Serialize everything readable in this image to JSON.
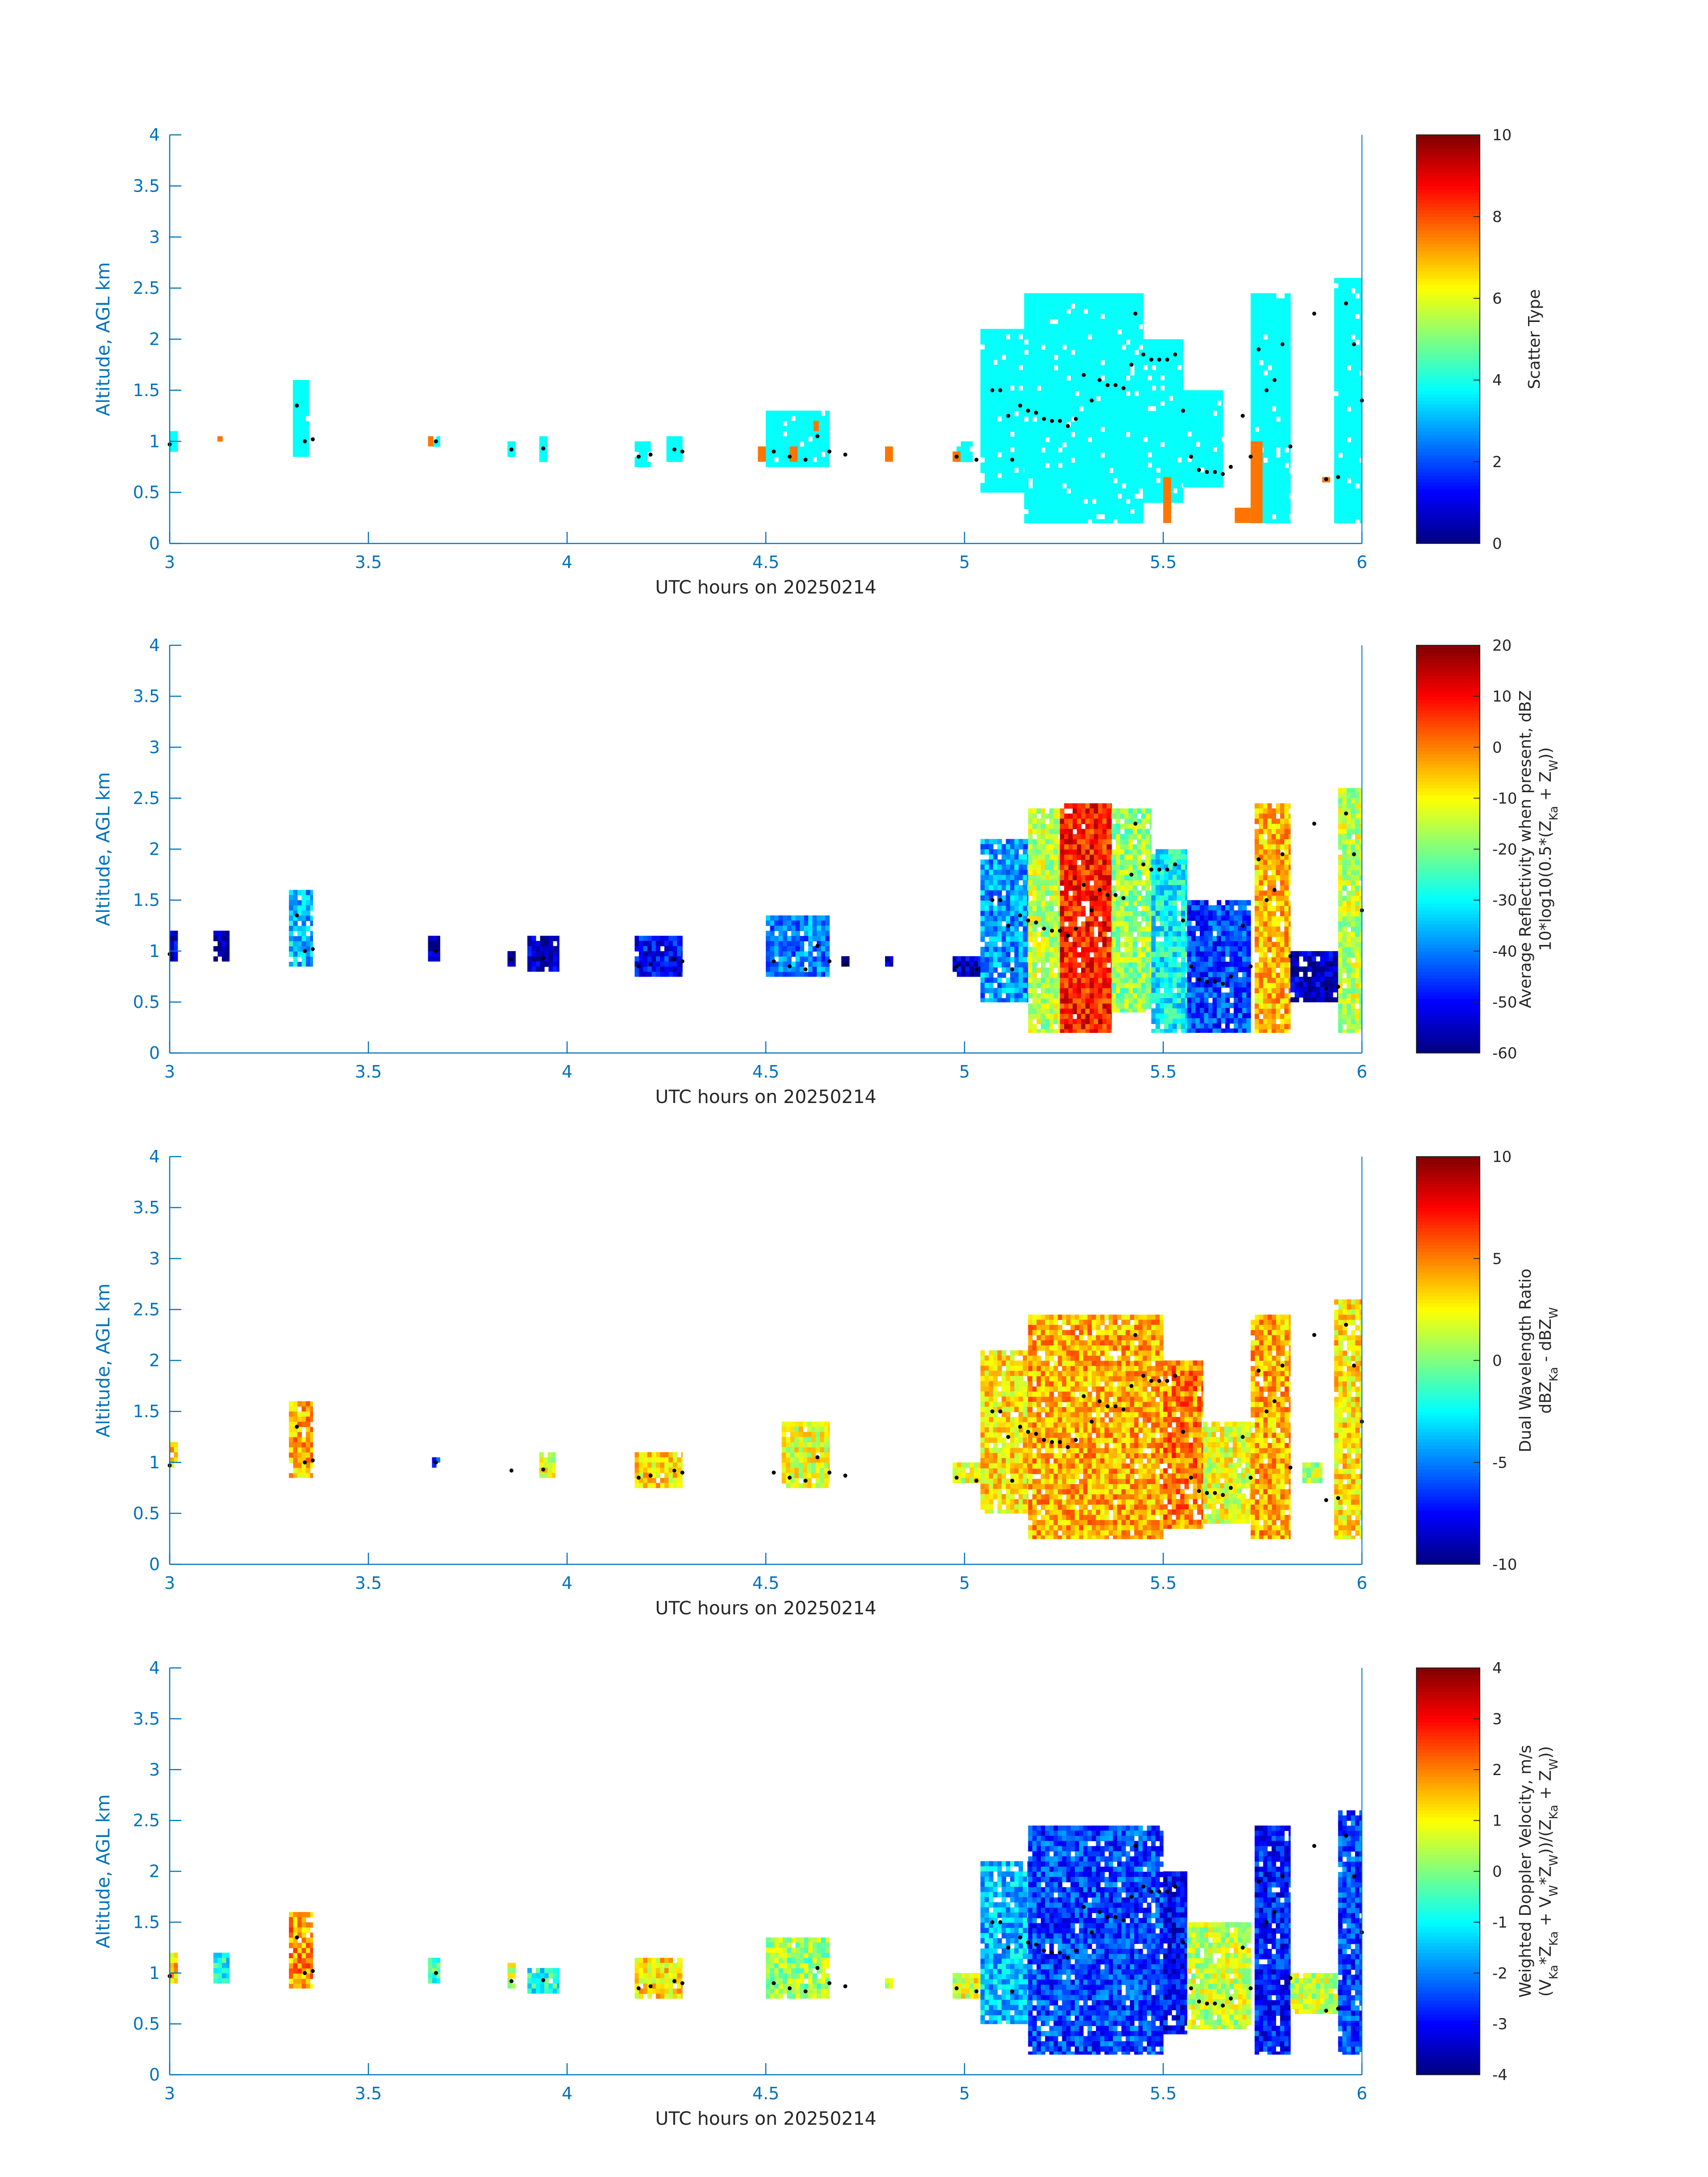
{
  "figure": {
    "background": "#ffffff",
    "axis_color": "#0072bd",
    "colormap": "jet"
  },
  "chart_data": [
    {
      "type": "heatmap",
      "xlabel": "UTC hours on 20250214",
      "ylabel": "Altitude, AGL km",
      "xlim": [
        3,
        6
      ],
      "ylim": [
        0,
        4
      ],
      "xticks": [
        "3",
        "3.5",
        "4",
        "4.5",
        "5",
        "5.5",
        "6"
      ],
      "yticks": [
        "0",
        "0.5",
        "1",
        "1.5",
        "2",
        "2.5",
        "3",
        "3.5",
        "4"
      ],
      "colorbar": {
        "range": [
          0,
          10
        ],
        "ticks": [
          "0",
          "2",
          "4",
          "6",
          "8",
          "10"
        ],
        "label_lines": [
          "Scatter Type"
        ]
      },
      "dominant_value": 3.8,
      "secondary_value": 7.6,
      "regions": [
        {
          "x": [
            3.0,
            3.02
          ],
          "y": [
            0.9,
            1.1
          ]
        },
        {
          "x": [
            3.31,
            3.35
          ],
          "y": [
            0.85,
            1.6
          ]
        },
        {
          "x": [
            3.66,
            3.68
          ],
          "y": [
            0.95,
            1.05
          ]
        },
        {
          "x": [
            3.85,
            3.87
          ],
          "y": [
            0.85,
            1.0
          ]
        },
        {
          "x": [
            3.93,
            3.95
          ],
          "y": [
            0.8,
            1.05
          ]
        },
        {
          "x": [
            4.17,
            4.21
          ],
          "y": [
            0.75,
            1.0
          ]
        },
        {
          "x": [
            4.25,
            4.29
          ],
          "y": [
            0.8,
            1.05
          ]
        },
        {
          "x": [
            4.5,
            4.66
          ],
          "y": [
            0.75,
            1.3
          ]
        },
        {
          "x": [
            4.98,
            5.02
          ],
          "y": [
            0.8,
            1.0
          ]
        },
        {
          "x": [
            5.04,
            5.15
          ],
          "y": [
            0.5,
            2.1
          ]
        },
        {
          "x": [
            5.15,
            5.45
          ],
          "y": [
            0.2,
            2.45
          ]
        },
        {
          "x": [
            5.45,
            5.55
          ],
          "y": [
            0.4,
            2.0
          ]
        },
        {
          "x": [
            5.55,
            5.65
          ],
          "y": [
            0.55,
            1.5
          ]
        },
        {
          "x": [
            5.72,
            5.82
          ],
          "y": [
            0.2,
            2.45
          ]
        },
        {
          "x": [
            5.93,
            6.0
          ],
          "y": [
            0.2,
            2.6
          ]
        }
      ],
      "secondary_regions": [
        {
          "x": [
            3.12,
            3.13
          ],
          "y": [
            1.0,
            1.05
          ]
        },
        {
          "x": [
            3.65,
            3.66
          ],
          "y": [
            0.95,
            1.05
          ]
        },
        {
          "x": [
            4.48,
            4.5
          ],
          "y": [
            0.8,
            0.95
          ]
        },
        {
          "x": [
            4.56,
            4.58
          ],
          "y": [
            0.8,
            0.95
          ]
        },
        {
          "x": [
            4.62,
            4.63
          ],
          "y": [
            1.1,
            1.2
          ]
        },
        {
          "x": [
            4.8,
            4.82
          ],
          "y": [
            0.8,
            0.95
          ]
        },
        {
          "x": [
            4.97,
            4.99
          ],
          "y": [
            0.8,
            0.9
          ]
        },
        {
          "x": [
            5.5,
            5.52
          ],
          "y": [
            0.2,
            0.65
          ]
        },
        {
          "x": [
            5.68,
            5.72
          ],
          "y": [
            0.2,
            0.35
          ]
        },
        {
          "x": [
            5.72,
            5.75
          ],
          "y": [
            0.2,
            1.0
          ]
        },
        {
          "x": [
            5.9,
            5.92
          ],
          "y": [
            0.6,
            0.65
          ]
        }
      ]
    },
    {
      "type": "heatmap",
      "xlabel": "UTC hours on 20250214",
      "ylabel": "Altitude, AGL km",
      "xlim": [
        3,
        6
      ],
      "ylim": [
        0,
        4
      ],
      "xticks": [
        "3",
        "3.5",
        "4",
        "4.5",
        "5",
        "5.5",
        "6"
      ],
      "yticks": [
        "0",
        "0.5",
        "1",
        "1.5",
        "2",
        "2.5",
        "3",
        "3.5",
        "4"
      ],
      "colorbar": {
        "range": [
          -60,
          20
        ],
        "ticks": [
          "-60",
          "-50",
          "-40",
          "-30",
          "-20",
          "-10",
          "0",
          "10",
          "20"
        ],
        "label_lines": [
          "Average Reflectivity when present, dBZ",
          "10*log10(0.5*(Z",
          "Ka",
          " + Z",
          "W",
          "))"
        ]
      },
      "regions": [
        {
          "x": [
            3.0,
            3.02
          ],
          "y": [
            0.9,
            1.2
          ],
          "value": -55
        },
        {
          "x": [
            3.11,
            3.15
          ],
          "y": [
            0.9,
            1.2
          ],
          "value": -58
        },
        {
          "x": [
            3.3,
            3.36
          ],
          "y": [
            0.85,
            1.6
          ],
          "value": -35
        },
        {
          "x": [
            3.65,
            3.68
          ],
          "y": [
            0.9,
            1.15
          ],
          "value": -58
        },
        {
          "x": [
            3.85,
            3.87
          ],
          "y": [
            0.85,
            1.0
          ],
          "value": -58
        },
        {
          "x": [
            3.9,
            3.98
          ],
          "y": [
            0.8,
            1.15
          ],
          "value": -55
        },
        {
          "x": [
            4.17,
            4.29
          ],
          "y": [
            0.75,
            1.15
          ],
          "value": -50
        },
        {
          "x": [
            4.5,
            4.66
          ],
          "y": [
            0.75,
            1.35
          ],
          "value": -40
        },
        {
          "x": [
            4.69,
            4.71
          ],
          "y": [
            0.85,
            0.95
          ],
          "value": -58
        },
        {
          "x": [
            4.8,
            4.82
          ],
          "y": [
            0.85,
            0.95
          ],
          "value": -58
        },
        {
          "x": [
            4.97,
            5.05
          ],
          "y": [
            0.75,
            0.95
          ],
          "value": -55
        },
        {
          "x": [
            5.04,
            5.16
          ],
          "y": [
            0.5,
            2.1
          ],
          "value": -38
        },
        {
          "x": [
            5.16,
            5.24
          ],
          "y": [
            0.2,
            2.4
          ],
          "value": -15
        },
        {
          "x": [
            5.24,
            5.37
          ],
          "y": [
            0.2,
            2.45
          ],
          "value": 8
        },
        {
          "x": [
            5.37,
            5.47
          ],
          "y": [
            0.4,
            2.4
          ],
          "value": -18
        },
        {
          "x": [
            5.47,
            5.56
          ],
          "y": [
            0.2,
            2.0
          ],
          "value": -30
        },
        {
          "x": [
            5.56,
            5.72
          ],
          "y": [
            0.2,
            1.5
          ],
          "value": -45
        },
        {
          "x": [
            5.73,
            5.82
          ],
          "y": [
            0.2,
            2.45
          ],
          "value": -5
        },
        {
          "x": [
            5.82,
            5.94
          ],
          "y": [
            0.5,
            1.0
          ],
          "value": -55
        },
        {
          "x": [
            5.94,
            6.0
          ],
          "y": [
            0.2,
            2.6
          ],
          "value": -15
        }
      ]
    },
    {
      "type": "heatmap",
      "xlabel": "UTC hours on 20250214",
      "ylabel": "Altitude, AGL km",
      "xlim": [
        3,
        6
      ],
      "ylim": [
        0,
        4
      ],
      "xticks": [
        "3",
        "3.5",
        "4",
        "4.5",
        "5",
        "5.5",
        "6"
      ],
      "yticks": [
        "0",
        "0.5",
        "1",
        "1.5",
        "2",
        "2.5",
        "3",
        "3.5",
        "4"
      ],
      "colorbar": {
        "range": [
          -10,
          10
        ],
        "ticks": [
          "-10",
          "-5",
          "0",
          "5",
          "10"
        ],
        "label_lines": [
          "Dual Wavelength Ratio",
          "dBZ",
          "Ka",
          " - dBZ",
          "W"
        ]
      },
      "regions": [
        {
          "x": [
            3.0,
            3.02
          ],
          "y": [
            0.95,
            1.2
          ],
          "value": 3
        },
        {
          "x": [
            3.3,
            3.36
          ],
          "y": [
            0.85,
            1.6
          ],
          "value": 4
        },
        {
          "x": [
            3.66,
            3.68
          ],
          "y": [
            0.95,
            1.05
          ],
          "value": -6
        },
        {
          "x": [
            3.93,
            3.97
          ],
          "y": [
            0.85,
            1.1
          ],
          "value": 2
        },
        {
          "x": [
            4.17,
            4.29
          ],
          "y": [
            0.75,
            1.1
          ],
          "value": 3
        },
        {
          "x": [
            4.54,
            4.66
          ],
          "y": [
            0.75,
            1.4
          ],
          "value": 2
        },
        {
          "x": [
            4.97,
            5.05
          ],
          "y": [
            0.8,
            1.0
          ],
          "value": 2
        },
        {
          "x": [
            5.04,
            5.16
          ],
          "y": [
            0.5,
            2.1
          ],
          "value": 3
        },
        {
          "x": [
            5.16,
            5.5
          ],
          "y": [
            0.25,
            2.45
          ],
          "value": 4
        },
        {
          "x": [
            5.5,
            5.6
          ],
          "y": [
            0.35,
            2.0
          ],
          "value": 5
        },
        {
          "x": [
            5.6,
            5.72
          ],
          "y": [
            0.4,
            1.4
          ],
          "value": 2
        },
        {
          "x": [
            5.72,
            5.82
          ],
          "y": [
            0.25,
            2.45
          ],
          "value": 4
        },
        {
          "x": [
            5.85,
            5.9
          ],
          "y": [
            0.8,
            1.0
          ],
          "value": 1
        },
        {
          "x": [
            5.93,
            6.0
          ],
          "y": [
            0.25,
            2.6
          ],
          "value": 3
        }
      ]
    },
    {
      "type": "heatmap",
      "xlabel": "UTC hours on 20250214",
      "ylabel": "Altitude, AGL km",
      "xlim": [
        3,
        6
      ],
      "ylim": [
        0,
        4
      ],
      "xticks": [
        "3",
        "3.5",
        "4",
        "4.5",
        "5",
        "5.5",
        "6"
      ],
      "yticks": [
        "0",
        "0.5",
        "1",
        "1.5",
        "2",
        "2.5",
        "3",
        "3.5",
        "4"
      ],
      "colorbar": {
        "range": [
          -4,
          4
        ],
        "ticks": [
          "-4",
          "-3",
          "-2",
          "-1",
          "0",
          "1",
          "2",
          "3",
          "4"
        ],
        "label_lines": [
          "Weighted Doppler Velocity, m/s",
          "(V",
          "Ka",
          "*Z",
          "Ka",
          " + V",
          "W",
          "*Z",
          "W",
          "))/(Z",
          "Ka",
          " + Z",
          "W",
          "))"
        ]
      },
      "regions": [
        {
          "x": [
            3.0,
            3.02
          ],
          "y": [
            0.9,
            1.2
          ],
          "value": 1.5
        },
        {
          "x": [
            3.11,
            3.15
          ],
          "y": [
            0.9,
            1.2
          ],
          "value": -0.8
        },
        {
          "x": [
            3.3,
            3.36
          ],
          "y": [
            0.85,
            1.6
          ],
          "value": 1.8
        },
        {
          "x": [
            3.65,
            3.68
          ],
          "y": [
            0.9,
            1.15
          ],
          "value": -0.5
        },
        {
          "x": [
            3.85,
            3.87
          ],
          "y": [
            0.85,
            1.1
          ],
          "value": 0.5
        },
        {
          "x": [
            3.9,
            3.98
          ],
          "y": [
            0.8,
            1.05
          ],
          "value": -0.8
        },
        {
          "x": [
            4.17,
            4.29
          ],
          "y": [
            0.75,
            1.15
          ],
          "value": 1.2
        },
        {
          "x": [
            4.5,
            4.66
          ],
          "y": [
            0.75,
            1.35
          ],
          "value": 0.2
        },
        {
          "x": [
            4.8,
            4.82
          ],
          "y": [
            0.85,
            0.95
          ],
          "value": 0.5
        },
        {
          "x": [
            4.97,
            5.05
          ],
          "y": [
            0.75,
            1.0
          ],
          "value": 0.8
        },
        {
          "x": [
            5.04,
            5.16
          ],
          "y": [
            0.5,
            2.1
          ],
          "value": -1.5
        },
        {
          "x": [
            5.16,
            5.5
          ],
          "y": [
            0.2,
            2.45
          ],
          "value": -2.5
        },
        {
          "x": [
            5.5,
            5.56
          ],
          "y": [
            0.4,
            2.0
          ],
          "value": -3
        },
        {
          "x": [
            5.56,
            5.72
          ],
          "y": [
            0.45,
            1.5
          ],
          "value": 0.5
        },
        {
          "x": [
            5.73,
            5.82
          ],
          "y": [
            0.2,
            2.45
          ],
          "value": -2.8
        },
        {
          "x": [
            5.82,
            5.94
          ],
          "y": [
            0.6,
            1.0
          ],
          "value": 0.5
        },
        {
          "x": [
            5.94,
            6.0
          ],
          "y": [
            0.2,
            2.6
          ],
          "value": -2.5
        }
      ]
    }
  ],
  "cloud_top_markers": {
    "color": "#000000",
    "points": [
      [
        3.0,
        0.97
      ],
      [
        3.32,
        1.35
      ],
      [
        3.34,
        1.0
      ],
      [
        3.36,
        1.02
      ],
      [
        3.67,
        1.0
      ],
      [
        3.86,
        0.92
      ],
      [
        3.94,
        0.93
      ],
      [
        4.18,
        0.85
      ],
      [
        4.21,
        0.87
      ],
      [
        4.27,
        0.92
      ],
      [
        4.29,
        0.9
      ],
      [
        4.52,
        0.9
      ],
      [
        4.56,
        0.85
      ],
      [
        4.6,
        0.82
      ],
      [
        4.63,
        1.05
      ],
      [
        4.66,
        0.9
      ],
      [
        4.7,
        0.87
      ],
      [
        4.98,
        0.85
      ],
      [
        5.03,
        0.82
      ],
      [
        5.07,
        1.5
      ],
      [
        5.09,
        1.5
      ],
      [
        5.11,
        1.25
      ],
      [
        5.12,
        0.82
      ],
      [
        5.14,
        1.35
      ],
      [
        5.16,
        1.3
      ],
      [
        5.18,
        1.28
      ],
      [
        5.2,
        1.22
      ],
      [
        5.22,
        1.2
      ],
      [
        5.24,
        1.2
      ],
      [
        5.26,
        1.15
      ],
      [
        5.28,
        1.22
      ],
      [
        5.3,
        1.65
      ],
      [
        5.32,
        1.4
      ],
      [
        5.34,
        1.6
      ],
      [
        5.36,
        1.55
      ],
      [
        5.38,
        1.55
      ],
      [
        5.4,
        1.52
      ],
      [
        5.42,
        1.75
      ],
      [
        5.43,
        2.25
      ],
      [
        5.45,
        1.85
      ],
      [
        5.47,
        1.8
      ],
      [
        5.49,
        1.8
      ],
      [
        5.51,
        1.8
      ],
      [
        5.53,
        1.85
      ],
      [
        5.55,
        1.3
      ],
      [
        5.57,
        0.85
      ],
      [
        5.59,
        0.72
      ],
      [
        5.61,
        0.7
      ],
      [
        5.63,
        0.7
      ],
      [
        5.65,
        0.68
      ],
      [
        5.67,
        0.75
      ],
      [
        5.7,
        1.25
      ],
      [
        5.72,
        0.85
      ],
      [
        5.74,
        1.9
      ],
      [
        5.76,
        1.5
      ],
      [
        5.78,
        1.6
      ],
      [
        5.8,
        1.95
      ],
      [
        5.82,
        0.95
      ],
      [
        5.88,
        2.25
      ],
      [
        5.91,
        0.63
      ],
      [
        5.94,
        0.65
      ],
      [
        5.96,
        2.35
      ],
      [
        5.98,
        1.95
      ],
      [
        6.0,
        1.4
      ]
    ]
  }
}
